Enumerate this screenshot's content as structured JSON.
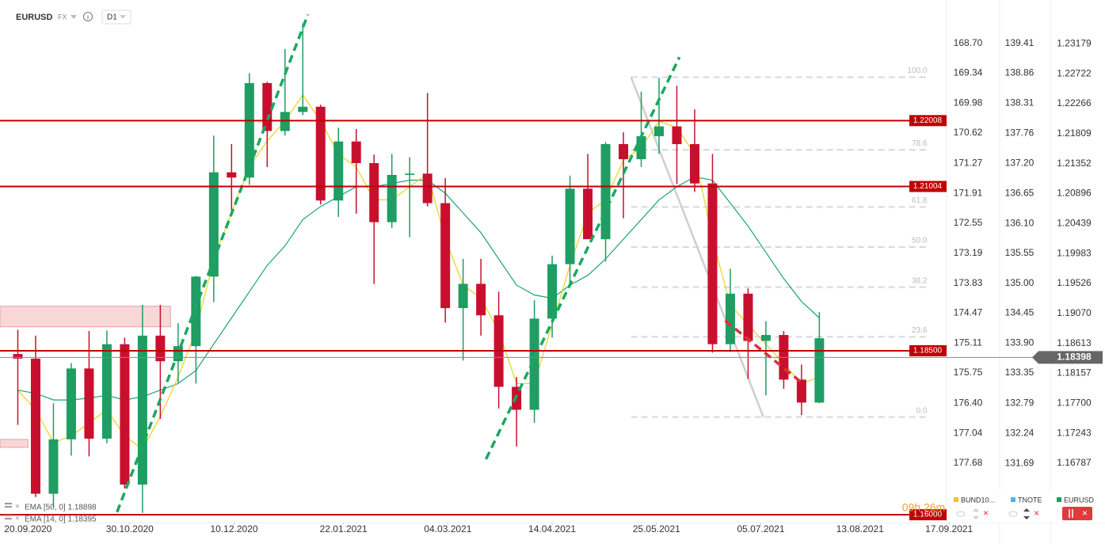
{
  "header": {
    "symbol": "EURUSD",
    "market": "FX",
    "interval": "D1"
  },
  "chart_data": {
    "type": "candlestick",
    "x": [
      "2020-09-16",
      "2020-09-23",
      "2020-09-30",
      "2020-10-07",
      "2020-10-14",
      "2020-10-21",
      "2020-10-28",
      "2020-11-04",
      "2020-11-11",
      "2020-11-18",
      "2020-11-25",
      "2020-12-02",
      "2020-12-09",
      "2020-12-16",
      "2020-12-23",
      "2020-12-30",
      "2021-01-06",
      "2021-01-13",
      "2021-01-20",
      "2021-01-27",
      "2021-02-03",
      "2021-02-10",
      "2021-02-17",
      "2021-02-24",
      "2021-03-03",
      "2021-03-10",
      "2021-03-17",
      "2021-03-24",
      "2021-03-31",
      "2021-04-07",
      "2021-04-14",
      "2021-04-21",
      "2021-04-28",
      "2021-05-05",
      "2021-05-12",
      "2021-05-19",
      "2021-05-26",
      "2021-06-02",
      "2021-06-09",
      "2021-06-16",
      "2021-06-23",
      "2021-06-30",
      "2021-07-07",
      "2021-07-14",
      "2021-07-21",
      "2021-07-28"
    ],
    "open": [
      1.1845,
      1.1838,
      1.1632,
      1.1715,
      1.1823,
      1.1716,
      1.186,
      1.1646,
      1.1873,
      1.1834,
      1.1857,
      1.1963,
      1.2122,
      1.2114,
      1.2258,
      1.2185,
      1.2214,
      1.2222,
      1.2079,
      1.2169,
      1.2136,
      1.2046,
      1.2118,
      1.212,
      1.2075,
      1.1915,
      1.1952,
      1.1904,
      1.1795,
      1.176,
      1.1899,
      1.1982,
      1.2097,
      1.202,
      1.2165,
      1.2142,
      1.2177,
      1.2192,
      1.2165,
      1.2105,
      1.186,
      1.1937,
      1.1865,
      1.1874,
      1.1806,
      1.1771
    ],
    "high": [
      1.1882,
      1.1873,
      1.177,
      1.1831,
      1.188,
      1.1881,
      1.187,
      1.192,
      1.192,
      1.1892,
      1.1964,
      1.2178,
      1.2165,
      1.2273,
      1.226,
      1.231,
      1.2349,
      1.2225,
      1.219,
      1.2188,
      1.2149,
      1.215,
      1.2145,
      1.2243,
      1.2113,
      1.199,
      1.199,
      1.194,
      1.181,
      1.1927,
      1.1995,
      1.2117,
      1.215,
      1.2168,
      1.2183,
      1.2245,
      1.2266,
      1.2254,
      1.2218,
      1.215,
      1.1975,
      1.1945,
      1.1895,
      1.188,
      1.1829,
      1.1909
    ],
    "low": [
      1.1737,
      1.1627,
      1.1612,
      1.169,
      1.1689,
      1.1709,
      1.164,
      1.1603,
      1.1746,
      1.1801,
      1.18,
      1.1924,
      1.2059,
      1.2103,
      1.213,
      1.2178,
      1.2209,
      1.2073,
      1.2054,
      1.2059,
      1.1952,
      1.2037,
      1.2023,
      1.207,
      1.1893,
      1.1835,
      1.1873,
      1.1762,
      1.1704,
      1.174,
      1.187,
      1.195,
      1.202,
      1.1986,
      1.2052,
      1.213,
      1.215,
      1.2104,
      1.2092,
      1.1847,
      1.1848,
      1.1807,
      1.1782,
      1.1792,
      1.1752,
      1.177
    ],
    "close": [
      1.1838,
      1.1632,
      1.1715,
      1.1823,
      1.1716,
      1.186,
      1.1646,
      1.1873,
      1.1834,
      1.1857,
      1.1963,
      1.2122,
      1.2114,
      1.2258,
      1.2185,
      1.2214,
      1.2222,
      1.2079,
      1.2169,
      1.2136,
      1.2046,
      1.2118,
      1.212,
      1.2075,
      1.1915,
      1.1952,
      1.1904,
      1.1795,
      1.176,
      1.1899,
      1.1982,
      1.2097,
      1.202,
      1.2165,
      1.2142,
      1.2177,
      1.2192,
      1.2165,
      1.2105,
      1.186,
      1.1937,
      1.1865,
      1.1874,
      1.1806,
      1.1771,
      1.1869
    ],
    "up_color": "#1f9d63",
    "down_color": "#c8102e",
    "xlim": [
      "2020-09-09",
      "2021-09-16"
    ],
    "xticks": [
      {
        "value": "2020-09-20",
        "label": "20.09.2020"
      },
      {
        "value": "2020-10-30",
        "label": "30.10.2020"
      },
      {
        "value": "2020-12-10",
        "label": "10.12.2020"
      },
      {
        "value": "2021-01-22",
        "label": "22.01.2021"
      },
      {
        "value": "2021-03-04",
        "label": "04.03.2021"
      },
      {
        "value": "2021-04-14",
        "label": "14.04.2021"
      },
      {
        "value": "2021-05-25",
        "label": "25.05.2021"
      },
      {
        "value": "2021-07-05",
        "label": "05.07.2021"
      },
      {
        "value": "2021-08-13",
        "label": "13.08.2021"
      },
      {
        "value": "2021-09-17",
        "label": "17.09.2021"
      }
    ],
    "ylim": [
      1.1588,
      1.2375
    ],
    "yticks": [
      1.23179,
      1.22722,
      1.22266,
      1.21809,
      1.21352,
      1.20896,
      1.20439,
      1.19983,
      1.19526,
      {
        "value": 1.1907,
        "label": "1.19070"
      },
      1.18613,
      1.18157,
      {
        "value": 1.177,
        "label": "1.17700"
      },
      1.17243,
      1.16787
    ],
    "y2lim": [
      130.6,
      140.09
    ],
    "y2ticks": [
      139.41,
      138.86,
      138.31,
      137.76,
      {
        "value": 137.2,
        "label": "137.20"
      },
      136.65,
      {
        "value": 136.1,
        "label": "136.10"
      },
      135.55,
      {
        "value": 135,
        "label": "135.00"
      },
      134.45,
      {
        "value": 133.9,
        "label": "133.90"
      },
      133.35,
      132.79,
      132.24,
      131.69
    ],
    "y3lim": [
      178.95,
      167.91
    ],
    "y3ticks": [
      {
        "value": 168.7,
        "label": "168.70"
      },
      169.34,
      169.98,
      170.62,
      171.27,
      171.91,
      172.55,
      173.19,
      173.83,
      174.47,
      175.11,
      175.75,
      {
        "value": 176.4,
        "label": "176.40"
      },
      177.04,
      177.68
    ],
    "indicators": [
      {
        "label": "EMA [50, 0] 1.18898",
        "color": "#1aa37a",
        "values": [
          1.179,
          1.1785,
          1.1775,
          1.1775,
          1.1778,
          1.1782,
          1.1775,
          1.178,
          1.179,
          1.18,
          1.182,
          1.186,
          1.19,
          1.194,
          1.198,
          1.201,
          1.205,
          1.207,
          1.2085,
          1.21,
          1.21,
          1.2105,
          1.211,
          1.211,
          1.209,
          1.206,
          1.203,
          1.199,
          1.195,
          1.1935,
          1.193,
          1.195,
          1.1965,
          1.199,
          1.202,
          1.205,
          1.208,
          1.21,
          1.2115,
          1.211,
          1.2075,
          1.204,
          1.2,
          1.196,
          1.1925,
          1.19
        ]
      },
      {
        "label": "EMA [14, 0] 1.18395",
        "color": "#ecd21c",
        "values": [
          1.179,
          1.176,
          1.171,
          1.172,
          1.174,
          1.176,
          1.172,
          1.17,
          1.175,
          1.181,
          1.188,
          1.199,
          1.206,
          1.213,
          1.217,
          1.22,
          1.224,
          1.22,
          1.215,
          1.213,
          1.208,
          1.208,
          1.21,
          1.212,
          1.202,
          1.195,
          1.193,
          1.188,
          1.18,
          1.18,
          1.189,
          1.198,
          1.206,
          1.208,
          1.214,
          1.216,
          1.22,
          1.219,
          1.215,
          1.202,
          1.192,
          1.189,
          1.186,
          1.183,
          1.18,
          1.181
        ]
      }
    ],
    "levels": [
      1.22008,
      1.21004,
      {
        "value": 1.185,
        "label": "1.18500"
      },
      {
        "value": 1.16,
        "label": "1.16000"
      }
    ],
    "level_color": "#c00000",
    "last_price": 1.18398,
    "zones": [
      {
        "x": [
          "2020-09-09",
          "2020-11-15"
        ],
        "y": [
          1.18865,
          1.19178
        ]
      },
      {
        "x": [
          "2020-09-09",
          "2020-09-20"
        ],
        "y": [
          1.17028,
          1.17149
        ]
      }
    ],
    "trendlines": [
      {
        "x": [
          "2020-10-25",
          "2021-01-08"
        ],
        "y": [
          1.1604,
          1.23625
        ],
        "color": "#1aa860"
      },
      {
        "x": [
          "2021-03-19",
          "2021-06-03"
        ],
        "y": [
          1.16847,
          1.22974
        ],
        "color": "#1aa860"
      },
      {
        "x": [
          "2021-06-21",
          "2021-07-21"
        ],
        "y": [
          1.18958,
          1.18017
        ],
        "color": "#e03030"
      }
    ],
    "fibonacci": {
      "start": "2021-05-15",
      "end": "2021-07-06",
      "extend_to": "2021-09-09",
      "high": 1.2267,
      "low": 1.1749,
      "levels": [
        {
          "value": 100,
          "label": "100.0"
        },
        78.6,
        61.8,
        {
          "value": 50,
          "label": "50.0"
        },
        38.2,
        23.6,
        {
          "value": 0,
          "label": "0.0"
        }
      ]
    }
  },
  "countdown": "09h 26m",
  "tabs": [
    {
      "label": "BUND10...",
      "color": "#f5c518"
    },
    {
      "label": "TNOTE",
      "color": "#4fb3e6"
    },
    {
      "label": "EURUSD",
      "color": "#1f9d63"
    }
  ]
}
